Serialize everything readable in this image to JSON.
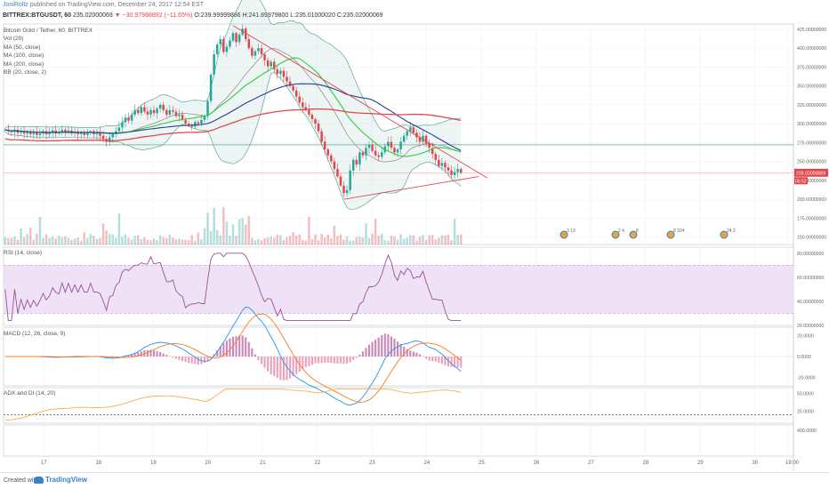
{
  "header": {
    "author": "JoniRoltz",
    "published": "published on TradingView.com, December 24, 2017 12:54 EST",
    "symbol": "BITTREX:BTGUSDT, 60",
    "open": "235.02000069",
    "change": "−30.97988892 (−11.65%)",
    "ohlc": "O:239.99999886 H:241.89979800 L:235.01000020 C:235.02000069"
  },
  "legend": {
    "title": "Bitcoin Gold / Tether, 60, BITTREX",
    "items": [
      "Vol (20)",
      "MA (50, close)",
      "MA (100, close)",
      "MA (200, close)",
      "BB (20, close, 2)"
    ]
  },
  "panes": {
    "rsi": "RSI (14, close)",
    "macd": "MACD (12, 26, close, 9)",
    "adx": "ADX and DI (14, 20)"
  },
  "colors": {
    "up": "#26a69a",
    "down": "#e0474c",
    "ma50": "#2ecc40",
    "ma100": "#2c3e8f",
    "ma200": "#e0474c",
    "bb": "#5aa89a",
    "rsi": "#9c4f96",
    "rsi_band": "#efe2f7",
    "macd": "#2196f3",
    "signal": "#ff7a1a",
    "adx": "#ffa94d",
    "trend": "#e0474c",
    "hline": "#5aa89a",
    "price_tag": "#e0474c"
  },
  "footer": {
    "created": "Created with",
    "brand": "TradingView"
  },
  "chart_data": [
    {
      "type": "candlestick",
      "title": "Bitcoin Gold / Tether, 60, BITTREX",
      "x_ticks": [
        "17",
        "18",
        "19",
        "20",
        "21",
        "22",
        "23",
        "24",
        "25",
        "26",
        "27",
        "28",
        "29",
        "30",
        "19:00"
      ],
      "y_ticks": [
        "425.00000000",
        "400.00000000",
        "375.00000000",
        "350.00000000",
        "325.00000000",
        "300.00000000",
        "275.00000000",
        "250.00000000",
        "225.00000000",
        "200.00000000",
        "175.00000000",
        "150.00000000"
      ],
      "ylim": [
        140,
        432
      ],
      "last_price": "235.02000069",
      "countdown": "05:52",
      "events": [
        "3 13",
        "2 4",
        "8",
        "8 324",
        "24 2"
      ],
      "closes": [
        292,
        290,
        289,
        292,
        288,
        290,
        287,
        289,
        286,
        288,
        285,
        287,
        290,
        286,
        288,
        291,
        287,
        289,
        292,
        288,
        291,
        287,
        289,
        286,
        288,
        285,
        288,
        290,
        286,
        289,
        284,
        280,
        276,
        282,
        286,
        290,
        295,
        302,
        308,
        304,
        312,
        318,
        314,
        322,
        316,
        312,
        318,
        314,
        320,
        325,
        318,
        312,
        318,
        316,
        310,
        312,
        305,
        300,
        298,
        296,
        302,
        300,
        305,
        310,
        330,
        365,
        392,
        405,
        412,
        395,
        402,
        410,
        420,
        408,
        418,
        426,
        412,
        400,
        390,
        396,
        400,
        392,
        384,
        376,
        382,
        372,
        366,
        370,
        362,
        356,
        350,
        344,
        336,
        328,
        322,
        318,
        312,
        306,
        300,
        290,
        276,
        266,
        258,
        250,
        240,
        230,
        218,
        208,
        212,
        238,
        252,
        246,
        262,
        258,
        268,
        272,
        264,
        258,
        256,
        262,
        270,
        276,
        268,
        262,
        266,
        276,
        284,
        290,
        295,
        288,
        282,
        276,
        284,
        274,
        268,
        260,
        252,
        244,
        248,
        242,
        238,
        232,
        236,
        240,
        235
      ]
    },
    {
      "type": "line",
      "title": "RSI (14, close)",
      "y_ticks": [
        "80.00000000",
        "60.00000000",
        "40.00000000",
        "20.00000000"
      ],
      "ylim": [
        20,
        85
      ],
      "band": [
        30,
        70
      ]
    },
    {
      "type": "line",
      "title": "MACD (12, 26, close, 9)",
      "y_ticks": [
        "20.0000",
        "0.0000",
        "-20.0000"
      ],
      "ylim": [
        -28,
        28
      ]
    },
    {
      "type": "line",
      "title": "ADX and DI (14, 20)",
      "y_ticks": [
        "50.0000",
        "25.0000"
      ],
      "ylim": [
        8,
        58
      ],
      "threshold": 20
    },
    {
      "type": "line",
      "title": "",
      "y_ticks": [
        "400.0000"
      ]
    }
  ]
}
